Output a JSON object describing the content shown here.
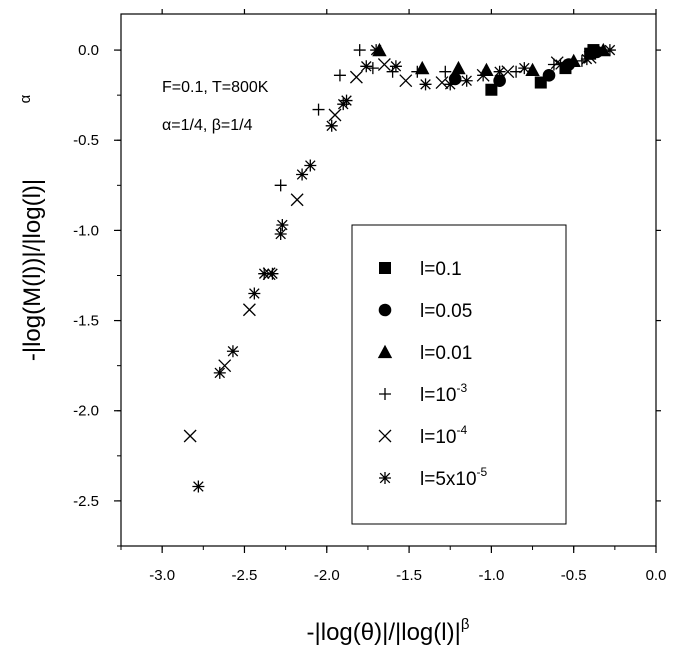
{
  "chart_data": {
    "type": "scatter",
    "xlim": [
      -3.25,
      0.0
    ],
    "ylim": [
      -2.75,
      0.2
    ],
    "xticks": [
      -3.0,
      -2.5,
      -2.0,
      -1.5,
      -1.0,
      -0.5,
      0.0
    ],
    "xtick_labels": [
      "-3.0",
      "-2.5",
      "-2.0",
      "-1.5",
      "-1.0",
      "-0.5",
      "0.0"
    ],
    "yticks": [
      0.0,
      -0.5,
      -1.0,
      -1.5,
      -2.0,
      -2.5
    ],
    "ytick_labels": [
      "0.0",
      "-0.5",
      "-1.0",
      "-1.5",
      "-2.0",
      "-2.5"
    ],
    "xlabel": {
      "base": "-|log(θ)|/|log(l)|",
      "sup": "β"
    },
    "ylabel": {
      "base": "-|log(M(l))|/|log(l)|",
      "sup": "α"
    },
    "annotations": [
      "F=0.1, T=800K",
      "α=1/4, β=1/4"
    ],
    "legend_position": "lower-right",
    "grid": false,
    "series": [
      {
        "name": "l=0.1",
        "legend_base": "l=0.1",
        "legend_sup": "",
        "marker": "square",
        "points": [
          [
            -1.0,
            -0.22
          ],
          [
            -0.7,
            -0.18
          ],
          [
            -0.55,
            -0.1
          ],
          [
            -0.4,
            -0.02
          ],
          [
            -0.38,
            0.0
          ]
        ]
      },
      {
        "name": "l=0.05",
        "legend_base": "l=0.05",
        "legend_sup": "",
        "marker": "circle",
        "points": [
          [
            -1.22,
            -0.16
          ],
          [
            -0.95,
            -0.17
          ],
          [
            -0.65,
            -0.14
          ],
          [
            -0.53,
            -0.08
          ],
          [
            -0.36,
            -0.01
          ]
        ]
      },
      {
        "name": "l=0.01",
        "legend_base": "l=0.01",
        "legend_sup": "",
        "marker": "triangle",
        "points": [
          [
            -1.68,
            0.0
          ],
          [
            -1.42,
            -0.1
          ],
          [
            -1.2,
            -0.1
          ],
          [
            -1.03,
            -0.11
          ],
          [
            -0.75,
            -0.11
          ],
          [
            -0.5,
            -0.06
          ],
          [
            -0.32,
            0.0
          ]
        ]
      },
      {
        "name": "l=10-3",
        "legend_base": "l=10",
        "legend_sup": "-3",
        "marker": "plus",
        "points": [
          [
            -2.28,
            -0.75
          ],
          [
            -2.05,
            -0.33
          ],
          [
            -1.92,
            -0.14
          ],
          [
            -1.8,
            0.0
          ],
          [
            -1.72,
            -0.1
          ],
          [
            -1.6,
            -0.12
          ],
          [
            -1.45,
            -0.12
          ],
          [
            -1.28,
            -0.12
          ],
          [
            -1.05,
            -0.14
          ],
          [
            -0.85,
            -0.12
          ],
          [
            -0.62,
            -0.08
          ],
          [
            -0.45,
            -0.06
          ]
        ]
      },
      {
        "name": "l=10-4",
        "legend_base": "l=10",
        "legend_sup": "-4",
        "marker": "x",
        "points": [
          [
            -2.83,
            -2.14
          ],
          [
            -2.62,
            -1.75
          ],
          [
            -2.47,
            -1.44
          ],
          [
            -2.35,
            -1.24
          ],
          [
            -2.18,
            -0.83
          ],
          [
            -1.95,
            -0.36
          ],
          [
            -1.82,
            -0.15
          ],
          [
            -1.65,
            -0.08
          ],
          [
            -1.52,
            -0.17
          ],
          [
            -1.3,
            -0.18
          ],
          [
            -1.05,
            -0.14
          ],
          [
            -0.9,
            -0.12
          ],
          [
            -0.6,
            -0.07
          ],
          [
            -0.4,
            -0.04
          ]
        ]
      },
      {
        "name": "l=5x10-5",
        "legend_base": "l=5x10",
        "legend_sup": "-5",
        "marker": "asterisk",
        "points": [
          [
            -2.78,
            -2.42
          ],
          [
            -2.65,
            -1.79
          ],
          [
            -2.57,
            -1.67
          ],
          [
            -2.44,
            -1.35
          ],
          [
            -2.38,
            -1.24
          ],
          [
            -2.33,
            -1.24
          ],
          [
            -2.27,
            -0.97
          ],
          [
            -2.28,
            -1.02
          ],
          [
            -2.15,
            -0.69
          ],
          [
            -2.1,
            -0.64
          ],
          [
            -1.97,
            -0.42
          ],
          [
            -1.9,
            -0.3
          ],
          [
            -1.88,
            -0.28
          ],
          [
            -1.76,
            -0.09
          ],
          [
            -1.7,
            0.0
          ],
          [
            -1.58,
            -0.09
          ],
          [
            -1.4,
            -0.19
          ],
          [
            -1.25,
            -0.19
          ],
          [
            -1.15,
            -0.17
          ],
          [
            -0.95,
            -0.12
          ],
          [
            -0.8,
            -0.1
          ],
          [
            -0.58,
            -0.08
          ],
          [
            -0.42,
            -0.05
          ],
          [
            -0.28,
            0.0
          ]
        ]
      }
    ]
  }
}
